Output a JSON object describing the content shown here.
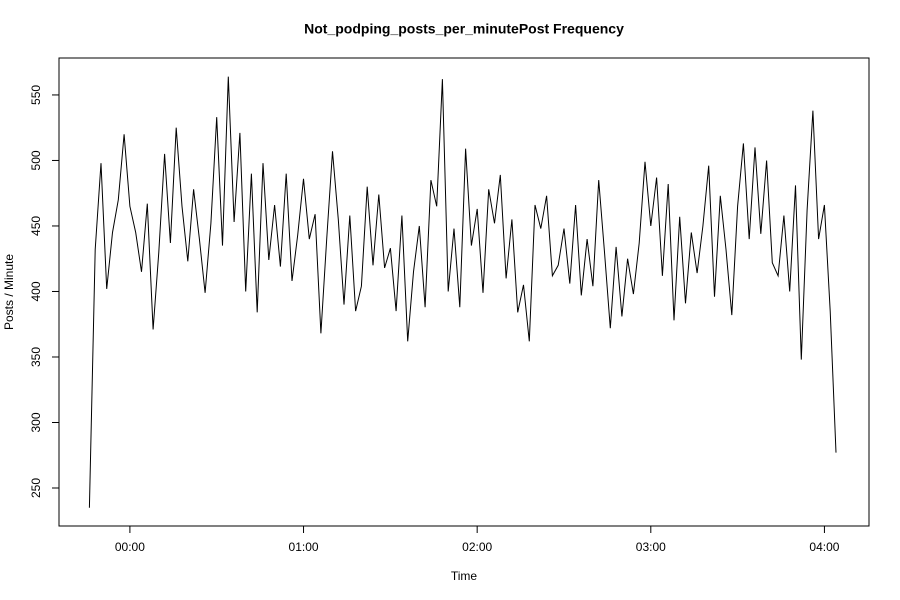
{
  "chart_data": {
    "type": "line",
    "title": "Not_podping_posts_per_minutePost Frequency",
    "x_label": "Time",
    "y_label": "Posts / Minute",
    "x": [
      -14,
      -12,
      -10,
      -8,
      -6,
      -4,
      -2,
      0,
      2,
      4,
      6,
      8,
      10,
      12,
      14,
      16,
      18,
      20,
      22,
      24,
      26,
      28,
      30,
      32,
      34,
      36,
      38,
      40,
      42,
      44,
      46,
      48,
      50,
      52,
      54,
      56,
      58,
      60,
      62,
      64,
      66,
      68,
      70,
      72,
      74,
      76,
      78,
      80,
      82,
      84,
      86,
      88,
      90,
      92,
      94,
      96,
      98,
      100,
      102,
      104,
      106,
      108,
      110,
      112,
      114,
      116,
      118,
      120,
      122,
      124,
      126,
      128,
      130,
      132,
      134,
      136,
      138,
      140,
      142,
      144,
      146,
      148,
      150,
      152,
      154,
      156,
      158,
      160,
      162,
      164,
      166,
      168,
      170,
      172,
      174,
      176,
      178,
      180,
      182,
      184,
      186,
      188,
      190,
      192,
      194,
      196,
      198,
      200,
      202,
      204,
      206,
      208,
      210,
      212,
      214,
      216,
      218,
      220,
      222,
      224,
      226,
      228,
      230,
      232,
      234,
      236,
      238,
      240,
      242,
      244
    ],
    "series": [
      {
        "name": "Posts",
        "color": "#000000",
        "values": [
          235,
          432,
          498,
          402,
          445,
          470,
          520,
          465,
          445,
          415,
          467,
          371,
          430,
          505,
          437,
          525,
          465,
          423,
          478,
          440,
          399,
          452,
          533,
          435,
          564,
          453,
          521,
          400,
          490,
          384,
          498,
          424,
          466,
          419,
          490,
          408,
          443,
          486,
          440,
          459,
          368,
          440,
          507,
          455,
          390,
          458,
          385,
          404,
          480,
          420,
          474,
          418,
          433,
          385,
          458,
          362,
          415,
          450,
          388,
          485,
          465,
          562,
          400,
          448,
          388,
          509,
          435,
          463,
          399,
          478,
          452,
          489,
          410,
          455,
          384,
          405,
          362,
          466,
          448,
          473,
          412,
          420,
          448,
          406,
          466,
          397,
          440,
          404,
          485,
          430,
          372,
          434,
          381,
          425,
          398,
          437,
          499,
          450,
          487,
          412,
          482,
          378,
          457,
          391,
          445,
          414,
          450,
          496,
          396,
          473,
          432,
          382,
          465,
          513,
          440,
          510,
          444,
          500,
          422,
          412,
          458,
          400,
          481,
          348,
          462,
          538,
          440,
          466,
          385,
          277
        ]
      }
    ],
    "xlim": [
      -24.5,
      255.4
    ],
    "xticks": [
      {
        "value": 0,
        "label": "00:00"
      },
      {
        "value": 60,
        "label": "01:00"
      },
      {
        "value": 120,
        "label": "02:00"
      },
      {
        "value": 180,
        "label": "03:00"
      },
      {
        "value": 240,
        "label": "04:00"
      }
    ],
    "ylim": [
      221,
      578.2
    ],
    "yticks": [
      250,
      300,
      350,
      400,
      450,
      500,
      550
    ]
  }
}
